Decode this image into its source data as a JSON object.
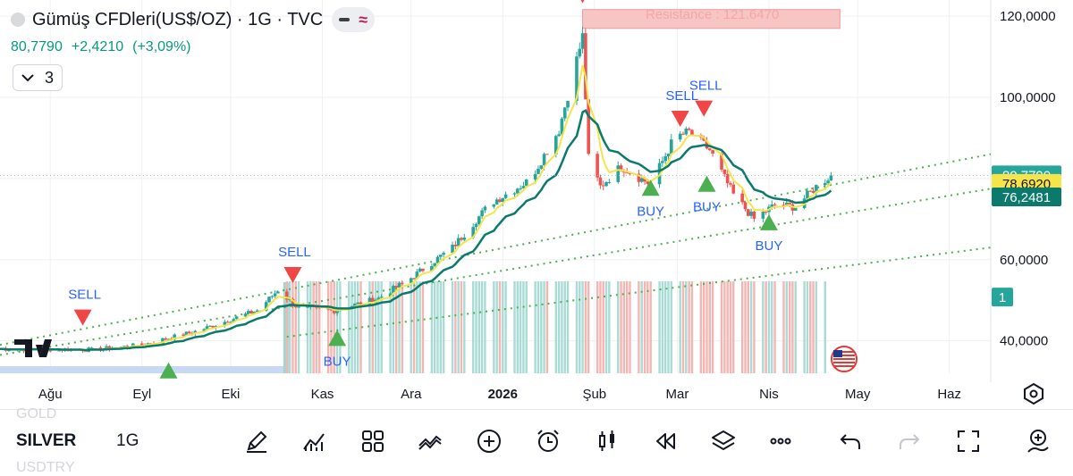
{
  "header": {
    "title": "Gümüş CFDleri(US$/OZ) · 1G · TVC",
    "price": "80,7790",
    "change": "+2,4210",
    "change_pct": "(+3,09%)",
    "collapse_count": "3"
  },
  "resistance_label": "Resistance : 121.6470",
  "colors": {
    "up": "#26a69a",
    "down": "#ef5350",
    "ema_fast": "#f5e44a",
    "ema_slow": "#0b7a6d",
    "trendline": "#4caf50",
    "resistance_box": "#f8c5c5",
    "signal_down": "#f04646",
    "signal_up": "#4caf50"
  },
  "chart_data": {
    "type": "candlestick",
    "symbol": "SILVER",
    "interval": "1G",
    "ylim": [
      32,
      124
    ],
    "y_ticks": [
      40,
      60,
      80,
      100,
      120
    ],
    "y_tick_labels": [
      "40,0000",
      "60,0000",
      "",
      "100,0000",
      "120,0000"
    ],
    "x_month_labels": [
      "Ağu",
      "Eyl",
      "Eki",
      "Kas",
      "Ara",
      "2026",
      "Şub",
      "Mar",
      "Nis",
      "May",
      "Haz"
    ],
    "x_month_dates": [
      "2025-08-01",
      "2025-09-01",
      "2025-10-01",
      "2025-11-01",
      "2025-12-01",
      "2026-01-01",
      "2026-02-01",
      "2026-03-01",
      "2026-04-01",
      "2026-05-01",
      "2026-06-01"
    ],
    "x_start": "2025-07-15",
    "x_end": "2026-06-15",
    "price_anchors": [
      [
        "2025-07-15",
        38.0
      ],
      [
        "2025-08-15",
        37.8
      ],
      [
        "2025-09-01",
        39.0
      ],
      [
        "2025-09-20",
        42.5
      ],
      [
        "2025-10-10",
        47.5
      ],
      [
        "2025-10-17",
        52.5
      ],
      [
        "2025-10-24",
        48.0
      ],
      [
        "2025-11-05",
        47.5
      ],
      [
        "2025-11-20",
        50.5
      ],
      [
        "2025-12-01",
        55.5
      ],
      [
        "2025-12-15",
        63.0
      ],
      [
        "2025-12-28",
        74.0
      ],
      [
        "2026-01-10",
        79.5
      ],
      [
        "2026-01-20",
        92.0
      ],
      [
        "2026-01-28",
        115.0
      ],
      [
        "2026-01-30",
        85.0
      ],
      [
        "2026-02-03",
        78.0
      ],
      [
        "2026-02-10",
        83.0
      ],
      [
        "2026-02-20",
        78.5
      ],
      [
        "2026-02-28",
        90.0
      ],
      [
        "2026-03-05",
        91.5
      ],
      [
        "2026-03-12",
        87.0
      ],
      [
        "2026-03-20",
        76.0
      ],
      [
        "2026-03-27",
        70.0
      ],
      [
        "2026-04-03",
        73.5
      ],
      [
        "2026-04-10",
        73.0
      ],
      [
        "2026-04-17",
        78.0
      ],
      [
        "2026-04-22",
        80.78
      ]
    ],
    "ema_fast_last": 78.692,
    "ema_slow_last": 76.2481,
    "price_tags": [
      "80,7790",
      "78,6920",
      "76,2481",
      "1"
    ],
    "resistance": {
      "value": 121.647,
      "low": 117.0,
      "start": "2026-01-28",
      "end": "2026-04-25"
    },
    "trendlines": [
      {
        "start": [
          "2025-07-15",
          39.0
        ],
        "end": [
          "2026-06-15",
          86.0
        ]
      },
      {
        "start": [
          "2025-07-15",
          36.5
        ],
        "end": [
          "2026-06-15",
          77.5
        ]
      },
      {
        "start": [
          "2025-10-20",
          41.0
        ],
        "end": [
          "2026-06-15",
          63.0
        ]
      }
    ],
    "signals": [
      {
        "type": "sell",
        "date": "2025-08-12",
        "value": 45.5,
        "label": "SELL"
      },
      {
        "type": "buy",
        "date": "2025-09-10",
        "value": 32.5,
        "label": ""
      },
      {
        "type": "sell",
        "date": "2025-10-22",
        "value": 56.0,
        "label": "SELL"
      },
      {
        "type": "buy",
        "date": "2025-11-06",
        "value": 40.5,
        "label": "BUY"
      },
      {
        "type": "sell",
        "date": "2026-01-28",
        "value": 125.0,
        "label": ""
      },
      {
        "type": "buy",
        "date": "2026-02-20",
        "value": 77.5,
        "label": "BUY"
      },
      {
        "type": "sell",
        "date": "2026-03-02",
        "value": 94.5,
        "label": "SELL"
      },
      {
        "type": "sell",
        "date": "2026-03-10",
        "value": 97.0,
        "label": "SELL"
      },
      {
        "type": "buy",
        "date": "2026-03-11",
        "value": 78.5,
        "label": "BUY"
      },
      {
        "type": "buy",
        "date": "2026-04-01",
        "value": 69.0,
        "label": "BUY"
      }
    ],
    "volume_start": "2025-10-20",
    "volume_end": "2026-04-20"
  },
  "toolbar": {
    "symbol": "SILVER",
    "interval": "1G",
    "ghost_above": "GOLD",
    "ghost_below": "USDTRY"
  },
  "icons": [
    "pencil-icon",
    "indicators-icon",
    "layouts-icon",
    "compare-icon",
    "add-icon",
    "alert-clock-icon",
    "candles-icon",
    "replay-icon",
    "layers-icon",
    "more-icon",
    "undo-icon",
    "redo-icon",
    "fullscreen-icon",
    "crowdfunding-icon"
  ]
}
